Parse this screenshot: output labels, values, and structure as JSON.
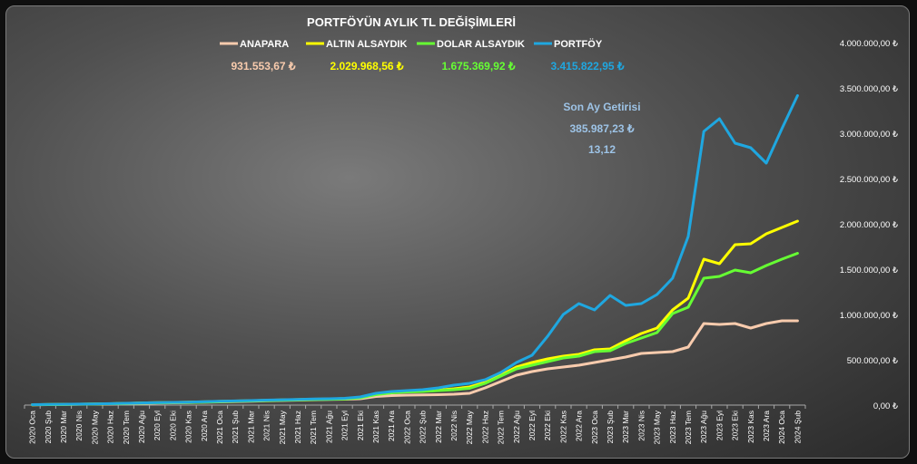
{
  "chart_data": {
    "type": "line",
    "title": "PORTFÖYÜN AYLIK TL DEĞİŞİMLERİ",
    "xlabel": "",
    "ylabel": "",
    "ylim": [
      0,
      4000000
    ],
    "yticks": [
      {
        "value": 0,
        "label": "0,00 ₺"
      },
      {
        "value": 500000,
        "label": "500.000,00 ₺"
      },
      {
        "value": 1000000,
        "label": "1.000.000,00 ₺"
      },
      {
        "value": 1500000,
        "label": "1.500.000,00 ₺"
      },
      {
        "value": 2000000,
        "label": "2.000.000,00 ₺"
      },
      {
        "value": 2500000,
        "label": "2.500.000,00 ₺"
      },
      {
        "value": 3000000,
        "label": "3.000.000,00 ₺"
      },
      {
        "value": 3500000,
        "label": "3.500.000,00 ₺"
      },
      {
        "value": 4000000,
        "label": "4.000.000,00 ₺"
      }
    ],
    "grid": false,
    "legend_position": "top",
    "categories": [
      "2020 Oca",
      "2020 Şub",
      "2020 Mar",
      "2020 Nis",
      "2020 May",
      "2020 Haz",
      "2020 Tem",
      "2020 Ağu",
      "2020 Eyl",
      "2020 Eki",
      "2020 Kas",
      "2020 Ara",
      "2021 Oca",
      "2021 Şub",
      "2021 Mar",
      "2021 Nis",
      "2021 May",
      "2021 Haz",
      "2021 Tem",
      "2021 Ağu",
      "2021 Eyl",
      "2021 Eki",
      "2021 Kas",
      "2021 Ara",
      "2022 Oca",
      "2022 Şub",
      "2022 Mar",
      "2022 Nis",
      "2022 May",
      "2022 Haz",
      "2022 Tem",
      "2022 Ağu",
      "2022 Eyl",
      "2022 Eki",
      "2022 Kas",
      "2022 Ara",
      "2023 Oca",
      "2023 Şub",
      "2023 Mar",
      "2023 Nis",
      "2023 May",
      "2023 Haz",
      "2023 Tem",
      "2023 Ağu",
      "2023 Eyl",
      "2023 Eki",
      "2023 Kas",
      "2023 Ara",
      "2024 Oca",
      "2024 Şub"
    ],
    "series": [
      {
        "name": "ANAPARA",
        "color": "#f8cbad",
        "final_label": "931.553,67 ₺",
        "values": [
          3000,
          5000,
          7000,
          9000,
          11000,
          13000,
          16000,
          19000,
          22000,
          25000,
          28000,
          31000,
          35000,
          39000,
          43000,
          47000,
          51000,
          55000,
          59000,
          62000,
          65000,
          70000,
          95000,
          105000,
          110000,
          112000,
          115000,
          120000,
          130000,
          190000,
          260000,
          330000,
          370000,
          400000,
          420000,
          440000,
          470000,
          500000,
          530000,
          570000,
          580000,
          590000,
          640000,
          900000,
          890000,
          900000,
          850000,
          900000,
          930000,
          930000
        ]
      },
      {
        "name": "ALTIN ALSAYDIK",
        "color": "#ffff00",
        "final_label": "2.029.968,56 ₺",
        "values": [
          4000,
          6000,
          8000,
          10000,
          12000,
          15000,
          19000,
          24000,
          27000,
          29000,
          32000,
          36000,
          41000,
          45000,
          49000,
          53000,
          57000,
          61000,
          65000,
          68000,
          72000,
          85000,
          120000,
          140000,
          150000,
          155000,
          165000,
          180000,
          200000,
          250000,
          330000,
          420000,
          470000,
          510000,
          540000,
          560000,
          610000,
          620000,
          710000,
          790000,
          850000,
          1050000,
          1180000,
          1610000,
          1560000,
          1770000,
          1780000,
          1890000,
          1960000,
          2030000
        ]
      },
      {
        "name": "DOLAR ALSAYDIK",
        "color": "#66ff33",
        "final_label": "1.675.369,92 ₺",
        "values": [
          4000,
          6000,
          8000,
          10000,
          12000,
          15000,
          18000,
          22000,
          25000,
          27000,
          29000,
          33000,
          38000,
          42000,
          46000,
          50000,
          54000,
          58000,
          61000,
          64000,
          68000,
          80000,
          115000,
          135000,
          145000,
          150000,
          160000,
          170000,
          185000,
          240000,
          320000,
          400000,
          440000,
          480000,
          520000,
          540000,
          590000,
          600000,
          680000,
          740000,
          800000,
          1010000,
          1080000,
          1400000,
          1420000,
          1490000,
          1460000,
          1540000,
          1610000,
          1675000
        ]
      },
      {
        "name": "PORTFÖY",
        "color": "#1fa7e0",
        "final_label": "3.415.822,95 ₺",
        "values": [
          5000,
          7000,
          9000,
          11000,
          13000,
          16000,
          20000,
          24000,
          28000,
          30000,
          33000,
          37000,
          42000,
          46000,
          50000,
          55000,
          59000,
          63000,
          67000,
          70000,
          75000,
          90000,
          130000,
          150000,
          160000,
          170000,
          190000,
          220000,
          240000,
          280000,
          360000,
          470000,
          550000,
          760000,
          1000000,
          1120000,
          1050000,
          1210000,
          1100000,
          1120000,
          1220000,
          1400000,
          1860000,
          3020000,
          3160000,
          2890000,
          2840000,
          2670000,
          3050000,
          3415000
        ]
      }
    ],
    "annotation": {
      "title": "Son Ay Getirisi",
      "amount": "385.987,23 ₺",
      "ratio": "13,12",
      "color": "#9dc3e6"
    }
  }
}
